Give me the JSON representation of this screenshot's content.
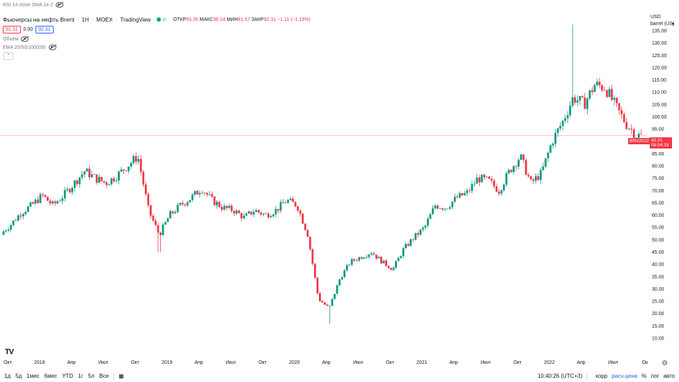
{
  "top": {
    "rsi_label": "RSI 14 close SMA 14 2"
  },
  "header": {
    "symbol": "Фьючерсы на нефть Brent",
    "interval": "1Н",
    "exchange": "MOEX",
    "source": "TradingView",
    "o_label": "ОТКР",
    "o_value": "93.35",
    "h_label": "МАКС",
    "h_value": "96.14",
    "l_label": "МИН",
    "l_value": "91.57",
    "c_label": "ЗАКР",
    "c_value": "92.31",
    "change": "−1.11 (−1.19%)"
  },
  "price_pills": {
    "bid": "92.31",
    "spread": "0.00",
    "ask": "92.31"
  },
  "volume_label": "Объём",
  "ema_label": "EMA 20/50/100/200",
  "axis": {
    "currency": "USD",
    "unit": "barrel (US)"
  },
  "last_price": {
    "ticker": "BRV2022",
    "price": "92.31",
    "countdown": "08:04:33"
  },
  "bottom": {
    "ranges": [
      "1д",
      "5д",
      "1мес",
      "6мес",
      "YTD",
      "1г",
      "5л",
      "Все"
    ],
    "clock": "10:40:26 (UTC+3)",
    "corr": "корр",
    "calc": "расч.цена",
    "pct": "%",
    "log": "лог",
    "auto": "авто"
  },
  "colors": {
    "up": "#089981",
    "down": "#f23645",
    "accent": "#2962ff",
    "price_line": "#f23645"
  },
  "chart_data": {
    "type": "candlestick",
    "title": "Фьючерсы на нефть Brent",
    "ylim": [
      10,
      137.5
    ],
    "y_ticks": [
      10,
      15,
      20,
      25,
      30,
      35,
      40,
      45,
      50,
      55,
      60,
      65,
      70,
      75,
      80,
      85,
      90,
      95,
      100,
      105,
      110,
      115,
      120,
      125,
      130,
      135
    ],
    "x_tick_labels": [
      "Окт",
      "2018",
      "Апр",
      "Июл",
      "Окт",
      "2019",
      "Апр",
      "Июл",
      "Окт",
      "2020",
      "Апр",
      "Июл",
      "Окт",
      "2021",
      "Апр",
      "Июл",
      "Окт",
      "2022",
      "Апр",
      "Июл",
      "Ок"
    ],
    "x_ticks": [
      "2017-10",
      "2018-01",
      "2018-04",
      "2018-07",
      "2018-10",
      "2019-01",
      "2019-04",
      "2019-07",
      "2019-10",
      "2020-01",
      "2020-04",
      "2020-07",
      "2020-10",
      "2021-01",
      "2021-04",
      "2021-07",
      "2021-10",
      "2022-01",
      "2022-04",
      "2022-07",
      "2022-10"
    ],
    "grid": false,
    "candle_interval": "weekly",
    "anchors": [
      [
        "2017-09",
        52
      ],
      [
        "2017-10",
        56
      ],
      [
        "2017-11",
        61
      ],
      [
        "2017-12",
        64
      ],
      [
        "2018-01",
        68
      ],
      [
        "2018-02",
        64
      ],
      [
        "2018-03",
        68
      ],
      [
        "2018-04",
        73
      ],
      [
        "2018-05",
        78
      ],
      [
        "2018-06",
        75
      ],
      [
        "2018-07",
        73
      ],
      [
        "2018-08",
        76
      ],
      [
        "2018-09",
        80
      ],
      [
        "2018-10",
        84
      ],
      [
        "2018-11",
        62
      ],
      [
        "2018-12",
        52
      ],
      [
        "2019-01",
        60
      ],
      [
        "2019-02",
        64
      ],
      [
        "2019-03",
        67
      ],
      [
        "2019-04",
        71
      ],
      [
        "2019-05",
        66
      ],
      [
        "2019-06",
        63
      ],
      [
        "2019-07",
        62
      ],
      [
        "2019-08",
        59
      ],
      [
        "2019-09",
        62
      ],
      [
        "2019-10",
        60
      ],
      [
        "2019-11",
        62
      ],
      [
        "2019-12",
        66
      ],
      [
        "2020-01",
        64
      ],
      [
        "2020-02",
        52
      ],
      [
        "2020-03",
        26
      ],
      [
        "2020-04",
        22
      ],
      [
        "2020-05",
        34
      ],
      [
        "2020-06",
        41
      ],
      [
        "2020-07",
        43
      ],
      [
        "2020-08",
        45
      ],
      [
        "2020-09",
        41
      ],
      [
        "2020-10",
        38
      ],
      [
        "2020-11",
        46
      ],
      [
        "2020-12",
        51
      ],
      [
        "2021-01",
        55
      ],
      [
        "2021-02",
        64
      ],
      [
        "2021-03",
        63
      ],
      [
        "2021-04",
        67
      ],
      [
        "2021-05",
        69
      ],
      [
        "2021-06",
        75
      ],
      [
        "2021-07",
        74
      ],
      [
        "2021-08",
        70
      ],
      [
        "2021-09",
        78
      ],
      [
        "2021-10",
        84
      ],
      [
        "2021-11",
        73
      ],
      [
        "2021-12",
        77
      ],
      [
        "2022-01",
        90
      ],
      [
        "2022-02",
        98
      ],
      [
        "2022-03",
        108
      ],
      [
        "2022-04",
        105
      ],
      [
        "2022-05",
        113
      ],
      [
        "2022-06",
        112
      ],
      [
        "2022-07",
        104
      ],
      [
        "2022-08",
        97
      ],
      [
        "2022-09",
        92.31
      ]
    ],
    "notable": {
      "high": [
        "2022-03",
        137.5
      ],
      "low": [
        "2020-04",
        16
      ],
      "dip_2018": [
        "2018-12",
        45
      ]
    },
    "last_close": 92.31
  }
}
